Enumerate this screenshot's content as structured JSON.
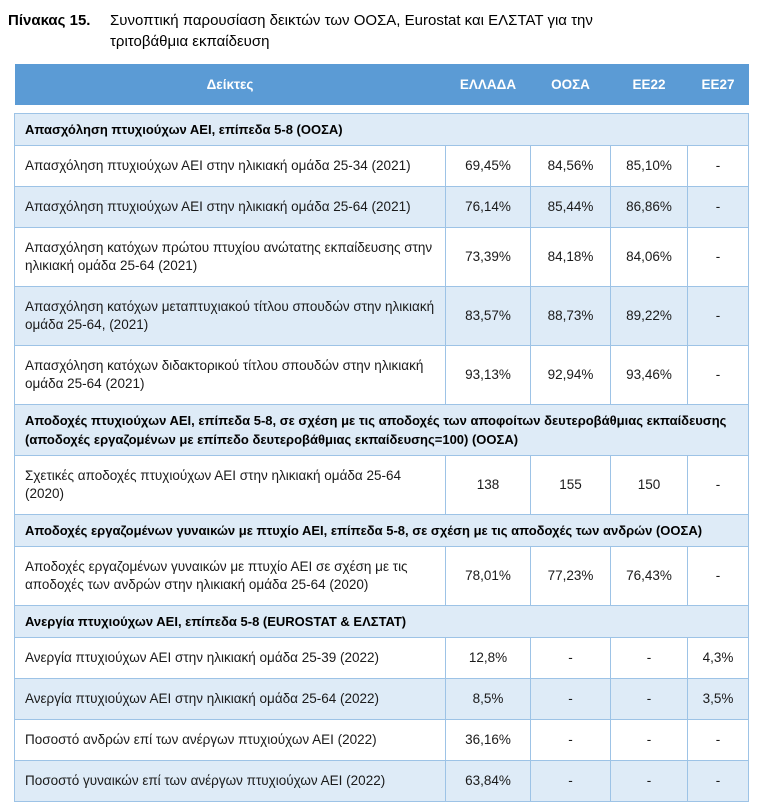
{
  "title": {
    "label": "Πίνακας 15.",
    "caption": "Συνοπτική παρουσίαση δεικτών των ΟΟΣΑ, Eurostat και ΕΛΣΤΑΤ για την τριτοβάθμια εκπαίδευση"
  },
  "colors": {
    "header_bg": "#5B9BD5",
    "header_text": "#FFFFFF",
    "band_bg": "#DEEBF7",
    "border": "#9DC3E6"
  },
  "table": {
    "columns": [
      "Δείκτες",
      "ΕΛΛΑΔΑ",
      "ΟΟΣΑ",
      "ΕΕ22",
      "ΕΕ27"
    ],
    "sections": [
      {
        "header": "Απασχόληση πτυχιούχων ΑΕΙ, επίπεδα 5-8 (ΟΟΣΑ)",
        "rows": [
          {
            "label": "Απασχόληση πτυχιούχων ΑΕΙ στην ηλικιακή ομάδα 25-34 (2021)",
            "values": [
              "69,45%",
              "84,56%",
              "85,10%",
              "-"
            ]
          },
          {
            "label": "Απασχόληση πτυχιούχων ΑΕΙ στην ηλικιακή ομάδα 25-64 (2021)",
            "values": [
              "76,14%",
              "85,44%",
              "86,86%",
              "-"
            ]
          },
          {
            "label": "Απασχόληση κατόχων πρώτου πτυχίου ανώτατης εκπαίδευσης στην ηλικιακή ομάδα 25-64 (2021)",
            "values": [
              "73,39%",
              "84,18%",
              "84,06%",
              "-"
            ]
          },
          {
            "label": "Απασχόληση κατόχων μεταπτυχιακού τίτλου σπουδών στην ηλικιακή ομάδα 25-64, (2021)",
            "values": [
              "83,57%",
              "88,73%",
              "89,22%",
              "-"
            ]
          },
          {
            "label": "Απασχόληση κατόχων διδακτορικού τίτλου σπουδών στην ηλικιακή ομάδα 25-64 (2021)",
            "values": [
              "93,13%",
              "92,94%",
              "93,46%",
              "-"
            ]
          }
        ]
      },
      {
        "header": "Αποδοχές πτυχιούχων ΑΕΙ, επίπεδα 5-8, σε σχέση με τις αποδοχές των αποφοίτων δευτεροβάθμιας εκπαίδευσης\n(αποδοχές εργαζομένων με επίπεδο δευτεροβάθμιας εκπαίδευσης=100) (ΟΟΣΑ)",
        "rows": [
          {
            "label": "Σχετικές αποδοχές πτυχιούχων ΑΕΙ στην ηλικιακή ομάδα 25-64 (2020)",
            "values": [
              "138",
              "155",
              "150",
              "-"
            ]
          }
        ]
      },
      {
        "header": "Αποδοχές εργαζομένων γυναικών με πτυχίο ΑΕΙ, επίπεδα 5-8, σε σχέση με τις αποδοχές των ανδρών (ΟΟΣΑ)",
        "rows": [
          {
            "label": "Αποδοχές εργαζομένων γυναικών με πτυχίο ΑΕΙ σε σχέση με τις αποδοχές των ανδρών στην ηλικιακή ομάδα 25-64 (2020)",
            "values": [
              "78,01%",
              "77,23%",
              "76,43%",
              "-"
            ]
          }
        ]
      },
      {
        "header": "Ανεργία πτυχιούχων ΑΕΙ, επίπεδα 5-8 (EUROSTAT & ΕΛΣΤΑΤ)",
        "rows": [
          {
            "label": "Ανεργία πτυχιούχων ΑΕΙ στην ηλικιακή ομάδα 25-39 (2022)",
            "values": [
              "12,8%",
              "-",
              "-",
              "4,3%"
            ]
          },
          {
            "label": "Ανεργία πτυχιούχων ΑΕΙ στην ηλικιακή ομάδα 25-64 (2022)",
            "values": [
              "8,5%",
              "-",
              "-",
              "3,5%"
            ]
          },
          {
            "label": "Ποσοστό ανδρών επί των ανέργων πτυχιούχων ΑΕΙ (2022)",
            "values": [
              "36,16%",
              "-",
              "-",
              "-"
            ]
          },
          {
            "label": "Ποσοστό γυναικών επί των ανέργων πτυχιούχων ΑΕΙ (2022)",
            "values": [
              "63,84%",
              "-",
              "-",
              "-"
            ]
          }
        ]
      }
    ]
  }
}
